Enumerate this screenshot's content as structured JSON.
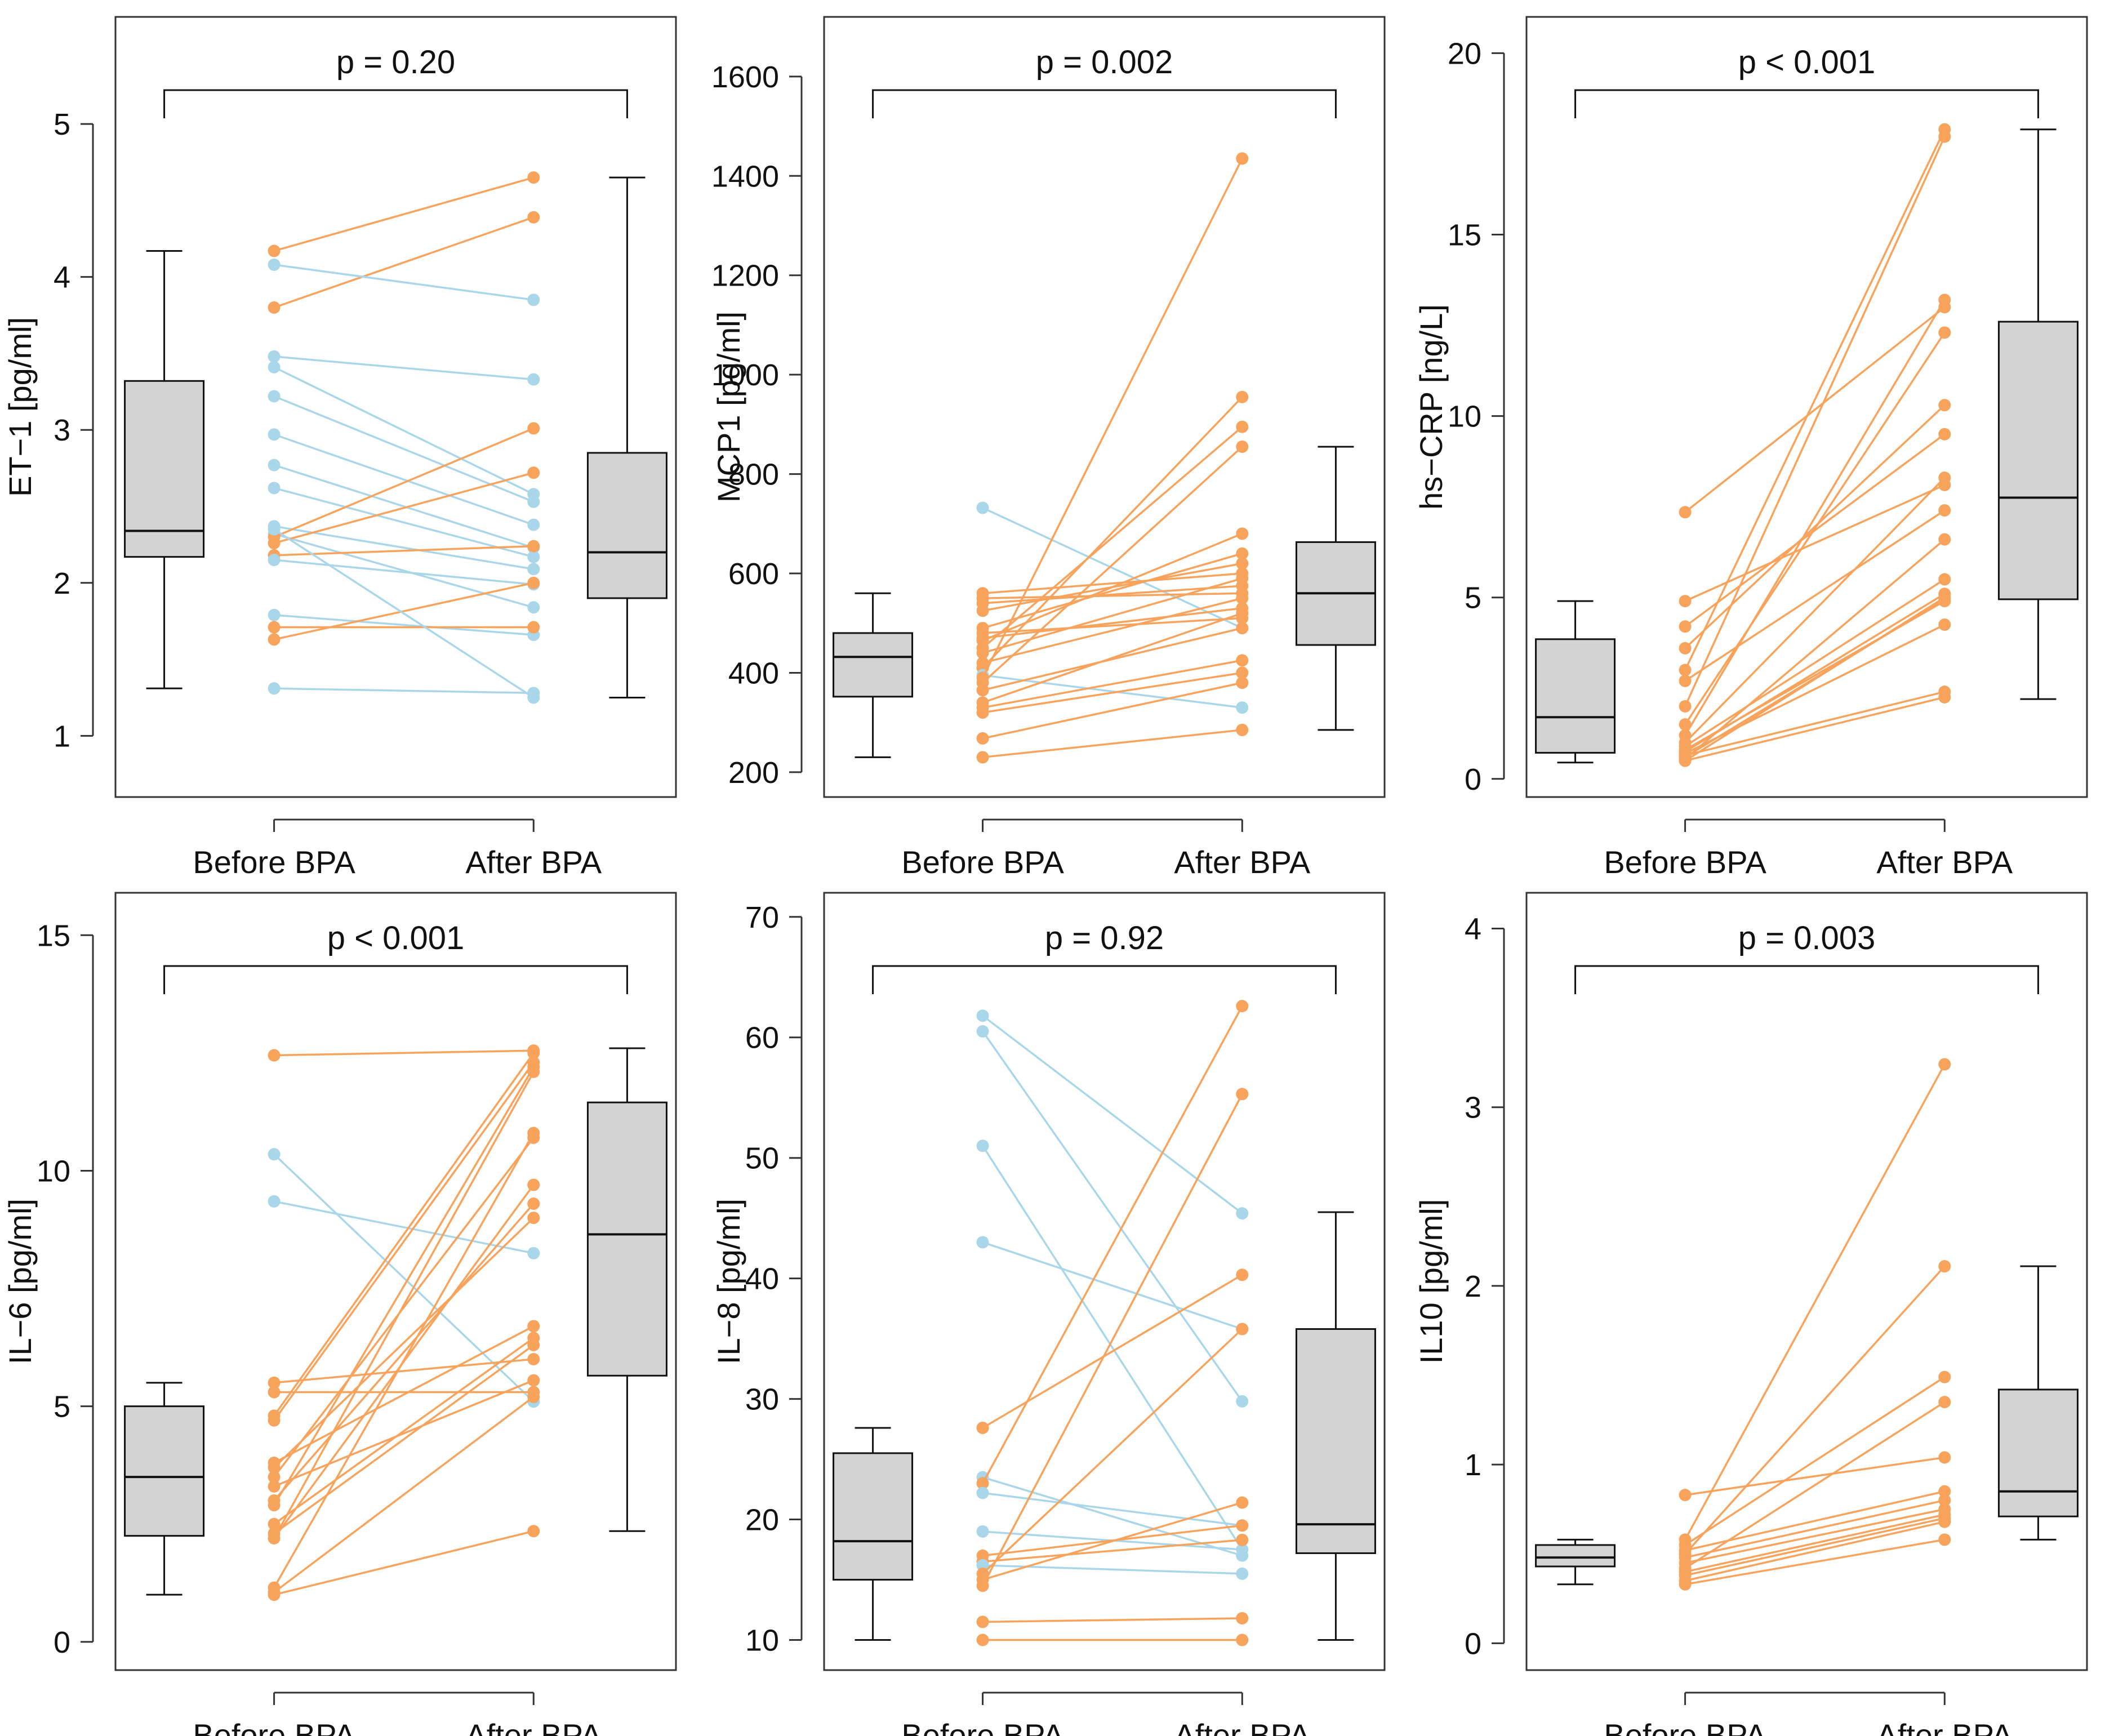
{
  "colors": {
    "increase": "#F7A35C",
    "decrease": "#A9D6E8",
    "box_fill": "#D3D3D3",
    "frame": "#333333"
  },
  "chart_data": [
    {
      "type": "boxplot-paired",
      "id": "et1",
      "ylabel": "ET−1 [pg/ml]",
      "categories": [
        "Before BPA",
        "After BPA"
      ],
      "ylim": [
        0.6,
        5.7
      ],
      "yticks": [
        1,
        2,
        3,
        4,
        5
      ],
      "p_label": "p = 0.20",
      "boxes": [
        {
          "group": "Before BPA",
          "min": 1.31,
          "q1": 2.17,
          "median": 2.34,
          "q3": 3.32,
          "max": 4.17
        },
        {
          "group": "After BPA",
          "min": 1.25,
          "q1": 1.9,
          "median": 2.2,
          "q3": 2.85,
          "max": 4.65
        }
      ],
      "pairs": [
        [
          4.17,
          4.65
        ],
        [
          3.8,
          4.39
        ],
        [
          4.08,
          3.85
        ],
        [
          3.48,
          3.33
        ],
        [
          3.41,
          2.58
        ],
        [
          3.22,
          2.53
        ],
        [
          2.97,
          2.38
        ],
        [
          2.77,
          2.23
        ],
        [
          2.62,
          2.17
        ],
        [
          2.37,
          2.09
        ],
        [
          2.32,
          1.84
        ],
        [
          2.3,
          3.01
        ],
        [
          2.26,
          2.72
        ],
        [
          2.18,
          2.24
        ],
        [
          2.15,
          1.99
        ],
        [
          1.79,
          1.66
        ],
        [
          1.71,
          1.71
        ],
        [
          1.63,
          2.0
        ],
        [
          1.31,
          1.28
        ],
        [
          2.35,
          1.25
        ]
      ]
    },
    {
      "type": "boxplot-paired",
      "id": "mcp1",
      "ylabel": "MCP1 [pg/ml]",
      "categories": [
        "Before BPA",
        "After BPA"
      ],
      "ylim": [
        150,
        1720
      ],
      "yticks": [
        200,
        400,
        600,
        800,
        1000,
        1200,
        1400,
        1600
      ],
      "p_label": "p = 0.002",
      "boxes": [
        {
          "group": "Before BPA",
          "min": 230,
          "q1": 352,
          "median": 432,
          "q3": 480,
          "max": 560
        },
        {
          "group": "After BPA",
          "min": 285,
          "q1": 456,
          "median": 560,
          "q3": 663,
          "max": 855
        }
      ],
      "pairs": [
        [
          732,
          490
        ],
        [
          560,
          600
        ],
        [
          550,
          560
        ],
        [
          540,
          575
        ],
        [
          525,
          620
        ],
        [
          490,
          640
        ],
        [
          480,
          510
        ],
        [
          470,
          530
        ],
        [
          465,
          680
        ],
        [
          450,
          895
        ],
        [
          440,
          590
        ],
        [
          420,
          550
        ],
        [
          410,
          955
        ],
        [
          395,
          330
        ],
        [
          390,
          1435
        ],
        [
          380,
          855
        ],
        [
          365,
          490
        ],
        [
          340,
          520
        ],
        [
          330,
          425
        ],
        [
          320,
          400
        ],
        [
          268,
          380
        ],
        [
          230,
          285
        ]
      ]
    },
    {
      "type": "boxplot-paired",
      "id": "hscrp",
      "ylabel": "hs−CRP [ng/L]",
      "categories": [
        "Before BPA",
        "After BPA"
      ],
      "ylim": [
        -0.5,
        21
      ],
      "yticks": [
        0,
        5,
        10,
        15,
        20
      ],
      "p_label": "p < 0.001",
      "boxes": [
        {
          "group": "Before BPA",
          "min": 0.45,
          "q1": 0.72,
          "median": 1.7,
          "q3": 3.85,
          "max": 4.9
        },
        {
          "group": "After BPA",
          "min": 2.2,
          "q1": 4.95,
          "median": 7.75,
          "q3": 12.6,
          "max": 17.9
        }
      ],
      "pairs": [
        [
          7.35,
          13.0
        ],
        [
          4.9,
          8.1
        ],
        [
          4.2,
          9.5
        ],
        [
          3.6,
          10.3
        ],
        [
          3.0,
          17.9
        ],
        [
          2.7,
          7.4
        ],
        [
          2.0,
          17.7
        ],
        [
          1.5,
          12.3
        ],
        [
          1.2,
          13.2
        ],
        [
          1.0,
          8.3
        ],
        [
          0.9,
          5.5
        ],
        [
          0.8,
          4.9
        ],
        [
          0.75,
          5.1
        ],
        [
          0.7,
          4.25
        ],
        [
          0.65,
          2.4
        ],
        [
          0.6,
          4.95
        ],
        [
          0.55,
          6.6
        ],
        [
          0.5,
          2.25
        ],
        [
          0.5,
          5.0
        ]
      ]
    },
    {
      "type": "boxplot-paired",
      "id": "il6",
      "ylabel": "IL−6 [pg/ml]",
      "categories": [
        "Before BPA",
        "After BPA"
      ],
      "ylim": [
        -0.6,
        15.9
      ],
      "yticks": [
        0,
        5,
        10,
        15
      ],
      "p_label": "p < 0.001",
      "boxes": [
        {
          "group": "Before BPA",
          "min": 1.0,
          "q1": 2.25,
          "median": 3.5,
          "q3": 5.0,
          "max": 5.5
        },
        {
          "group": "After BPA",
          "min": 2.35,
          "q1": 5.65,
          "median": 8.65,
          "q3": 11.45,
          "max": 12.6
        }
      ],
      "pairs": [
        [
          12.45,
          12.55
        ],
        [
          10.35,
          5.1
        ],
        [
          9.35,
          8.25
        ],
        [
          5.5,
          6.0
        ],
        [
          5.3,
          5.3
        ],
        [
          4.8,
          12.5
        ],
        [
          4.7,
          12.3
        ],
        [
          3.8,
          6.7
        ],
        [
          3.7,
          9.0
        ],
        [
          3.5,
          10.7
        ],
        [
          3.3,
          5.55
        ],
        [
          3.0,
          9.3
        ],
        [
          2.9,
          12.2
        ],
        [
          2.5,
          6.45
        ],
        [
          2.3,
          6.3
        ],
        [
          2.2,
          12.1
        ],
        [
          2.2,
          9.7
        ],
        [
          1.15,
          10.8
        ],
        [
          1.05,
          5.2
        ],
        [
          1.0,
          2.35
        ]
      ]
    },
    {
      "type": "boxplot-paired",
      "id": "il8",
      "ylabel": "IL−8 [pg/ml]",
      "categories": [
        "Before BPA",
        "After BPA"
      ],
      "ylim": [
        7.5,
        72
      ],
      "yticks": [
        10,
        20,
        30,
        40,
        50,
        60,
        70
      ],
      "p_label": "p = 0.92",
      "boxes": [
        {
          "group": "Before BPA",
          "min": 10,
          "q1": 15,
          "median": 18.2,
          "q3": 25.5,
          "max": 27.6
        },
        {
          "group": "After BPA",
          "min": 10,
          "q1": 17.2,
          "median": 19.6,
          "q3": 35.8,
          "max": 45.5
        }
      ],
      "pairs": [
        [
          61.8,
          45.4
        ],
        [
          60.5,
          29.8
        ],
        [
          51.0,
          17.5
        ],
        [
          43.0,
          35.8
        ],
        [
          27.6,
          40.3
        ],
        [
          23.5,
          17.0
        ],
        [
          23.0,
          62.6
        ],
        [
          22.2,
          19.5
        ],
        [
          19.0,
          17.5
        ],
        [
          17.0,
          19.5
        ],
        [
          16.5,
          18.3
        ],
        [
          16.2,
          15.5
        ],
        [
          15.5,
          35.8
        ],
        [
          15.0,
          21.4
        ],
        [
          14.5,
          55.3
        ],
        [
          11.5,
          11.8
        ],
        [
          10.0,
          10.0
        ]
      ]
    },
    {
      "type": "boxplot-paired",
      "id": "il10",
      "ylabel": "IL10 [pg/ml]",
      "categories": [
        "Before BPA",
        "After BPA"
      ],
      "ylim": [
        -0.15,
        4.2
      ],
      "yticks": [
        0,
        1,
        2,
        3,
        4
      ],
      "p_label": "p = 0.003",
      "boxes": [
        {
          "group": "Before BPA",
          "min": 0.33,
          "q1": 0.43,
          "median": 0.48,
          "q3": 0.55,
          "max": 0.58
        },
        {
          "group": "After BPA",
          "min": 0.58,
          "q1": 0.71,
          "median": 0.85,
          "q3": 1.42,
          "max": 2.11
        }
      ],
      "pairs": [
        [
          0.83,
          1.04
        ],
        [
          0.58,
          3.24
        ],
        [
          0.55,
          1.49
        ],
        [
          0.52,
          0.85
        ],
        [
          0.5,
          2.11
        ],
        [
          0.48,
          0.8
        ],
        [
          0.45,
          0.75
        ],
        [
          0.42,
          1.35
        ],
        [
          0.4,
          0.72
        ],
        [
          0.38,
          0.7
        ],
        [
          0.35,
          0.68
        ],
        [
          0.33,
          0.58
        ]
      ]
    }
  ]
}
